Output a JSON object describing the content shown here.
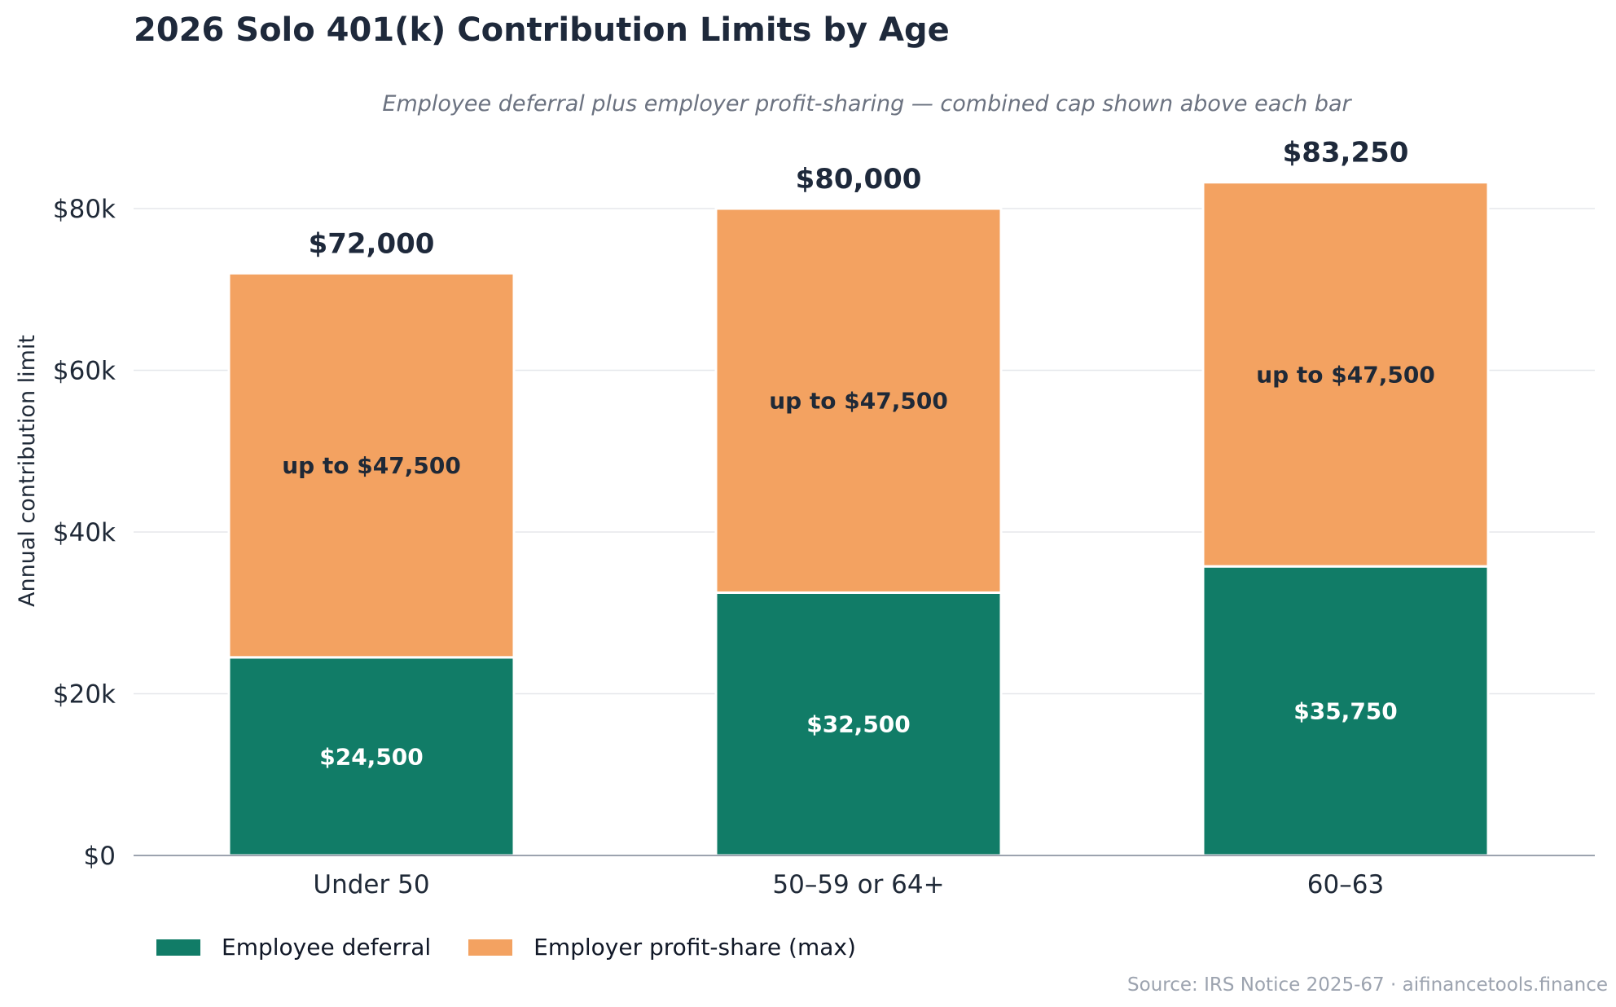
{
  "chart_data": {
    "type": "bar",
    "stacked": true,
    "title": "2026 Solo 401(k) Contribution Limits by Age",
    "subtitle": "Employee deferral plus employer profit-sharing — combined cap shown above each bar",
    "xlabel": "",
    "ylabel": "Annual contribution limit",
    "ylim": [
      0,
      90000
    ],
    "yticks": [
      0,
      20000,
      40000,
      60000,
      80000
    ],
    "ytick_labels": [
      "$0",
      "$20k",
      "$40k",
      "$60k",
      "$80k"
    ],
    "grid": true,
    "legend_position": "bottom-left",
    "categories": [
      "Under 50",
      "50–59 or 64+",
      "60–63"
    ],
    "series": [
      {
        "name": "Employee deferral",
        "color": "#117c67",
        "values": [
          24500,
          32500,
          35750
        ],
        "labels": [
          "$24,500",
          "$32,500",
          "$35,750"
        ]
      },
      {
        "name": "Employer profit-share (max)",
        "color": "#f3a261",
        "values": [
          47500,
          47500,
          47500
        ],
        "labels": [
          "up to $47,500",
          "up to $47,500",
          "up to $47,500"
        ]
      }
    ],
    "totals": [
      72000,
      80000,
      83250
    ],
    "total_labels": [
      "$72,000",
      "$80,000",
      "$83,250"
    ],
    "source": "Source: IRS Notice 2025-67 · aifinancetools.finance"
  }
}
